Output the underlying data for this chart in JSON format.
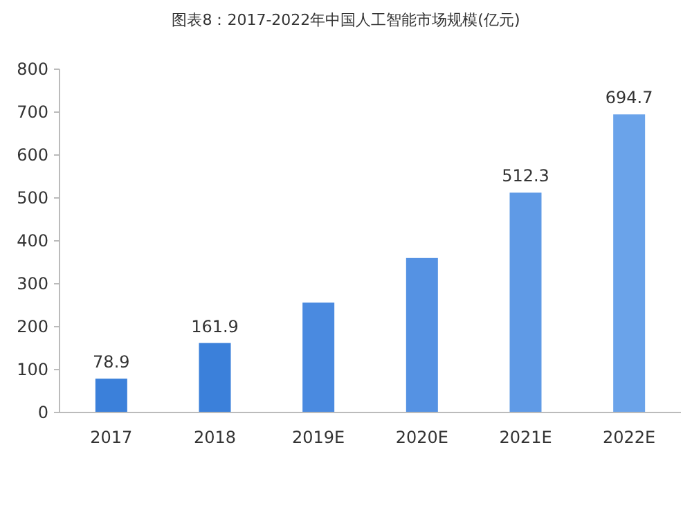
{
  "chart_data": {
    "type": "bar",
    "title": "图表8：2017-2022年中国人工智能市场规模(亿元)",
    "categories": [
      "2017",
      "2018",
      "2019E",
      "2020E",
      "2021E",
      "2022E"
    ],
    "values": [
      78.9,
      161.9,
      256,
      360,
      512.3,
      694.7
    ],
    "value_labels": [
      "78.9",
      "161.9",
      null,
      null,
      "512.3",
      "694.7"
    ],
    "colors": [
      "#3b80da",
      "#3b80da",
      "#4a8ae0",
      "#5592e3",
      "#5f9ae6",
      "#6aa3ea"
    ],
    "ylim": [
      0,
      800
    ],
    "yticks": [
      0,
      100,
      200,
      300,
      400,
      500,
      600,
      700,
      800
    ],
    "grid": false
  }
}
